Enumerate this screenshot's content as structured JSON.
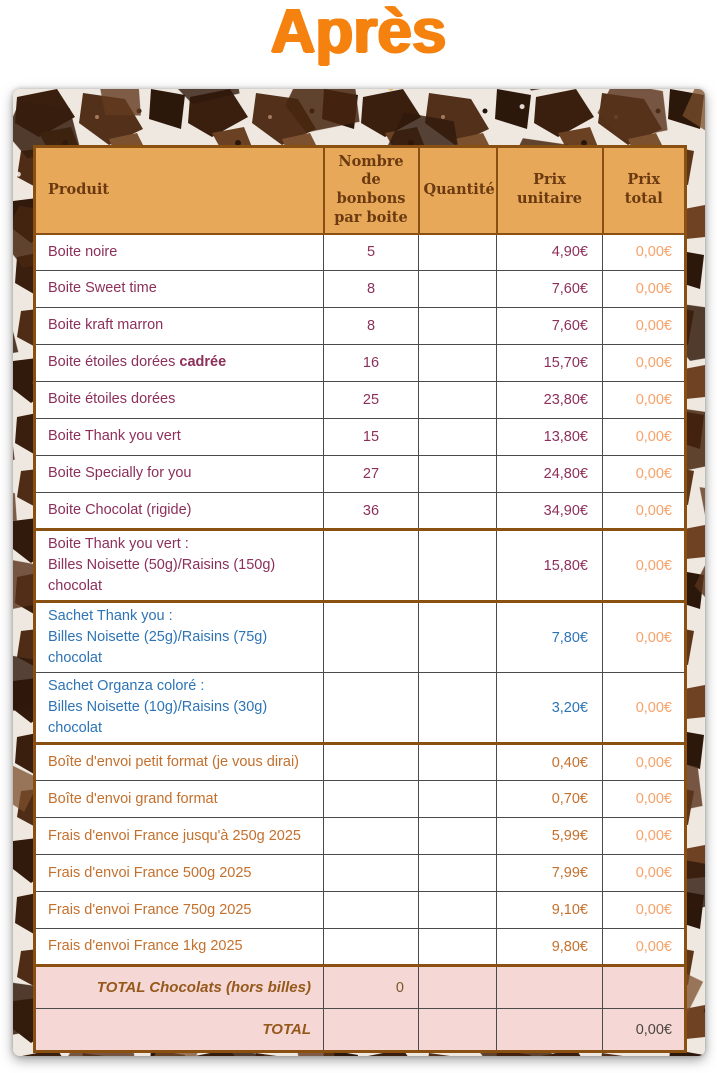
{
  "title": "Après",
  "colors": {
    "title_orange": "#f5820f",
    "header_bg": "#e8a85a",
    "header_text": "#6b3a10",
    "border_brown": "#8a5012",
    "row_maroon": "#8c2f5a",
    "row_blue": "#2e74b5",
    "row_orange": "#c4702d",
    "prix_total_orange": "#f8a168",
    "total_row_pink": "#f5d8d6",
    "total_label_brown": "#96591c"
  },
  "table": {
    "headers": {
      "produit": "Produit",
      "nombre": "Nombre de bonbons par boite",
      "quantite": "Quantité",
      "prix_unitaire": "Prix unitaire",
      "prix_total": "Prix total"
    },
    "rows": [
      {
        "produit": "Boite noire",
        "nombre": "5",
        "quantite": "",
        "prix_unitaire": "4,90€",
        "prix_total": "0,00€",
        "color": "maroon"
      },
      {
        "produit": "Boite Sweet time",
        "nombre": "8",
        "quantite": "",
        "prix_unitaire": "7,60€",
        "prix_total": "0,00€",
        "color": "maroon"
      },
      {
        "produit": "Boite kraft marron",
        "nombre": "8",
        "quantite": "",
        "prix_unitaire": "7,60€",
        "prix_total": "0,00€",
        "color": "maroon"
      },
      {
        "produit": "Boite étoiles dorées ",
        "produit_bold": "cadrée",
        "nombre": "16",
        "quantite": "",
        "prix_unitaire": "15,70€",
        "prix_total": "0,00€",
        "color": "maroon"
      },
      {
        "produit": "Boite étoiles dorées",
        "nombre": "25",
        "quantite": "",
        "prix_unitaire": "23,80€",
        "prix_total": "0,00€",
        "color": "maroon"
      },
      {
        "produit": "Boite Thank you vert",
        "nombre": "15",
        "quantite": "",
        "prix_unitaire": "13,80€",
        "prix_total": "0,00€",
        "color": "maroon"
      },
      {
        "produit": "Boite Specially for you",
        "nombre": "27",
        "quantite": "",
        "prix_unitaire": "24,80€",
        "prix_total": "0,00€",
        "color": "maroon"
      },
      {
        "produit": "Boite Chocolat (rigide)",
        "nombre": "36",
        "quantite": "",
        "prix_unitaire": "34,90€",
        "prix_total": "0,00€",
        "color": "maroon"
      },
      {
        "produit": "Boite Thank you vert :",
        "produit_line2": "Billes Noisette (50g)/Raisins (150g) chocolat",
        "nombre": "",
        "quantite": "",
        "prix_unitaire": "15,80€",
        "prix_total": "0,00€",
        "color": "maroon",
        "sep_top": true,
        "sep_bottom": true
      },
      {
        "produit": "Sachet Thank you :",
        "produit_line2": "Billes Noisette (25g)/Raisins (75g) chocolat",
        "nombre": "",
        "quantite": "",
        "prix_unitaire": "7,80€",
        "prix_total": "0,00€",
        "color": "blue"
      },
      {
        "produit": "Sachet Organza coloré :",
        "produit_line2": "Billes Noisette (10g)/Raisins (30g) chocolat",
        "nombre": "",
        "quantite": "",
        "prix_unitaire": "3,20€",
        "prix_total": "0,00€",
        "color": "blue"
      },
      {
        "produit": "Boîte d'envoi petit format (je vous dirai)",
        "nombre": "",
        "quantite": "",
        "prix_unitaire": "0,40€",
        "prix_total": "0,00€",
        "color": "orange",
        "sep_top": true
      },
      {
        "produit": "Boîte d'envoi grand format",
        "nombre": "",
        "quantite": "",
        "prix_unitaire": "0,70€",
        "prix_total": "0,00€",
        "color": "orange"
      },
      {
        "produit": "Frais d'envoi France jusqu'à 250g 2025",
        "nombre": "",
        "quantite": "",
        "prix_unitaire": "5,99€",
        "prix_total": "0,00€",
        "color": "orange"
      },
      {
        "produit": "Frais d'envoi France 500g 2025",
        "nombre": "",
        "quantite": "",
        "prix_unitaire": "7,99€",
        "prix_total": "0,00€",
        "color": "orange"
      },
      {
        "produit": "Frais d'envoi France 750g 2025",
        "nombre": "",
        "quantite": "",
        "prix_unitaire": "9,10€",
        "prix_total": "0,00€",
        "color": "orange"
      },
      {
        "produit": "Frais d'envoi France 1kg 2025",
        "nombre": "",
        "quantite": "",
        "prix_unitaire": "9,80€",
        "prix_total": "0,00€",
        "color": "orange"
      }
    ],
    "total_rows": [
      {
        "label": "TOTAL Chocolats (hors billes)",
        "nombre": "0",
        "quantite": "",
        "prix_unitaire": "",
        "prix_total": "",
        "sep_top": true
      },
      {
        "label": "TOTAL",
        "nombre": "",
        "quantite": "",
        "prix_unitaire": "",
        "prix_total": "0,00€"
      }
    ]
  }
}
